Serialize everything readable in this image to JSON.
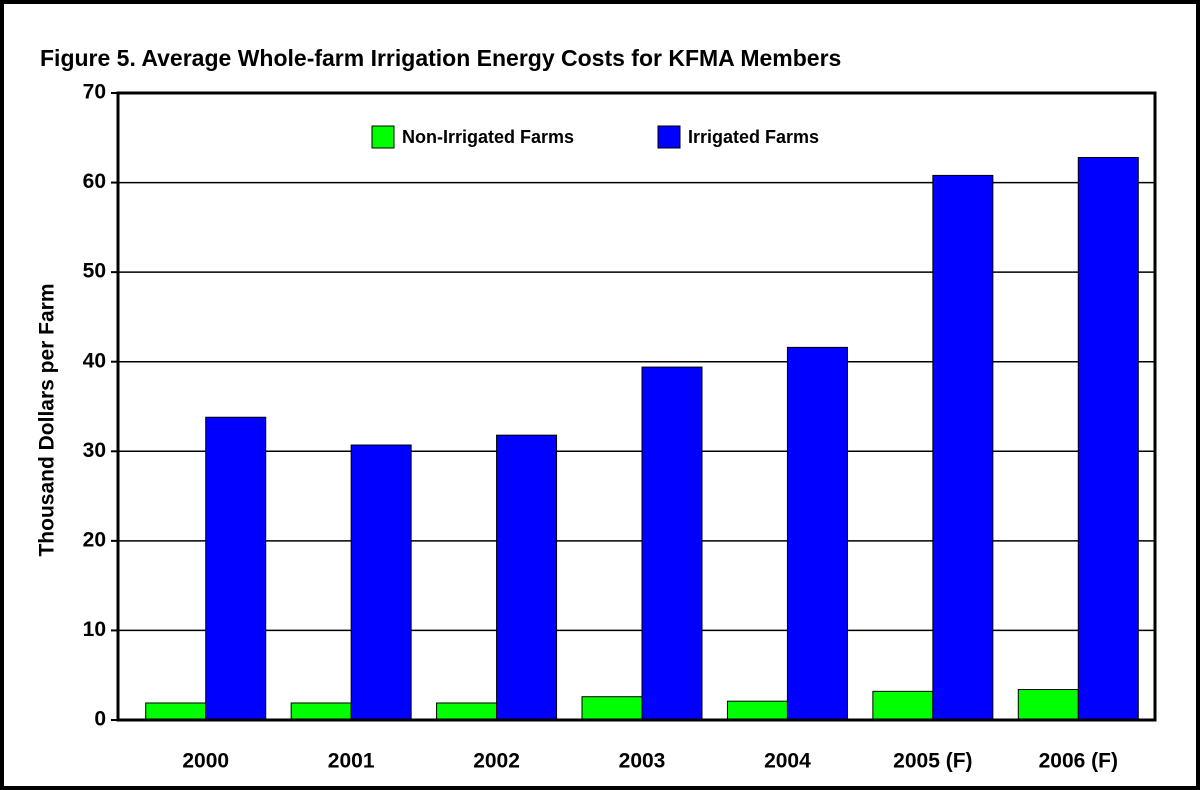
{
  "chart_data": {
    "type": "bar",
    "title": "Figure 5.  Average Whole-farm Irrigation Energy Costs for KFMA Members",
    "y_label": "Thousand Dollars per Farm",
    "categories": [
      "2000",
      "2001",
      "2002",
      "2003",
      "2004",
      "2005 (F)",
      "2006 (F)"
    ],
    "series": [
      {
        "name": "Non-Irrigated Farms",
        "color": "#00ff00",
        "values": [
          1.9,
          1.9,
          1.9,
          2.6,
          2.1,
          3.2,
          3.4
        ]
      },
      {
        "name": "Irrigated Farms",
        "color": "#0000ff",
        "values": [
          33.8,
          30.7,
          31.8,
          39.4,
          41.6,
          60.8,
          62.8
        ]
      }
    ],
    "ylim": [
      0,
      70
    ],
    "yticks": [
      0,
      10,
      20,
      30,
      40,
      50,
      60,
      70
    ],
    "grid": true,
    "legend": "top"
  }
}
